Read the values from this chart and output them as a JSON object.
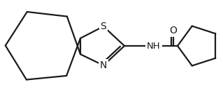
{
  "bg_color": "#ffffff",
  "line_color": "#1a1a1a",
  "line_width": 1.6,
  "figsize": [
    3.19,
    1.28
  ],
  "dpi": 100,
  "font_size": 9.5,
  "xlim": [
    0,
    319
  ],
  "ylim": [
    0,
    128
  ]
}
